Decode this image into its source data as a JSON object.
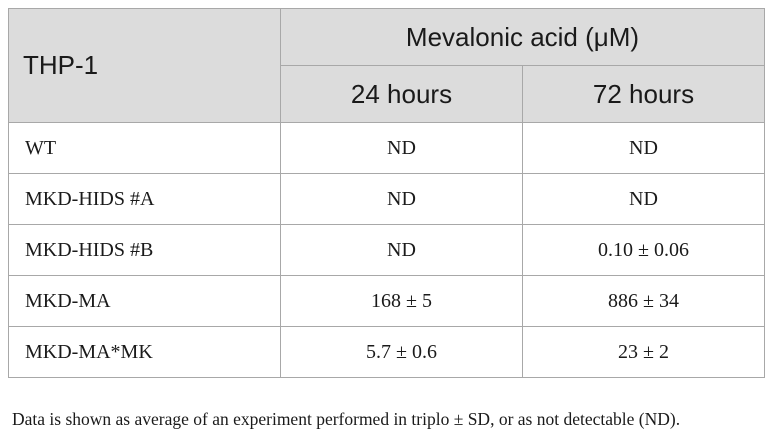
{
  "table": {
    "row_header": "THP-1",
    "group_header": "Mevalonic acid (μM)",
    "col_24": "24 hours",
    "col_72": "72 hours",
    "rows": [
      {
        "name": "WT",
        "h24": "ND",
        "h72": "ND"
      },
      {
        "name": "MKD-HIDS #A",
        "h24": "ND",
        "h72": "ND"
      },
      {
        "name": "MKD-HIDS #B",
        "h24": "ND",
        "h72": "0.10 ± 0.06"
      },
      {
        "name": "MKD-MA",
        "h24": "168 ± 5",
        "h72": "886 ± 34"
      },
      {
        "name": "MKD-MA*MK",
        "h24": "5.7 ± 0.6",
        "h72": "23 ± 2"
      }
    ]
  },
  "footnote": "Data is shown as average of an experiment performed in triplo ± SD, or as not detectable (ND)."
}
